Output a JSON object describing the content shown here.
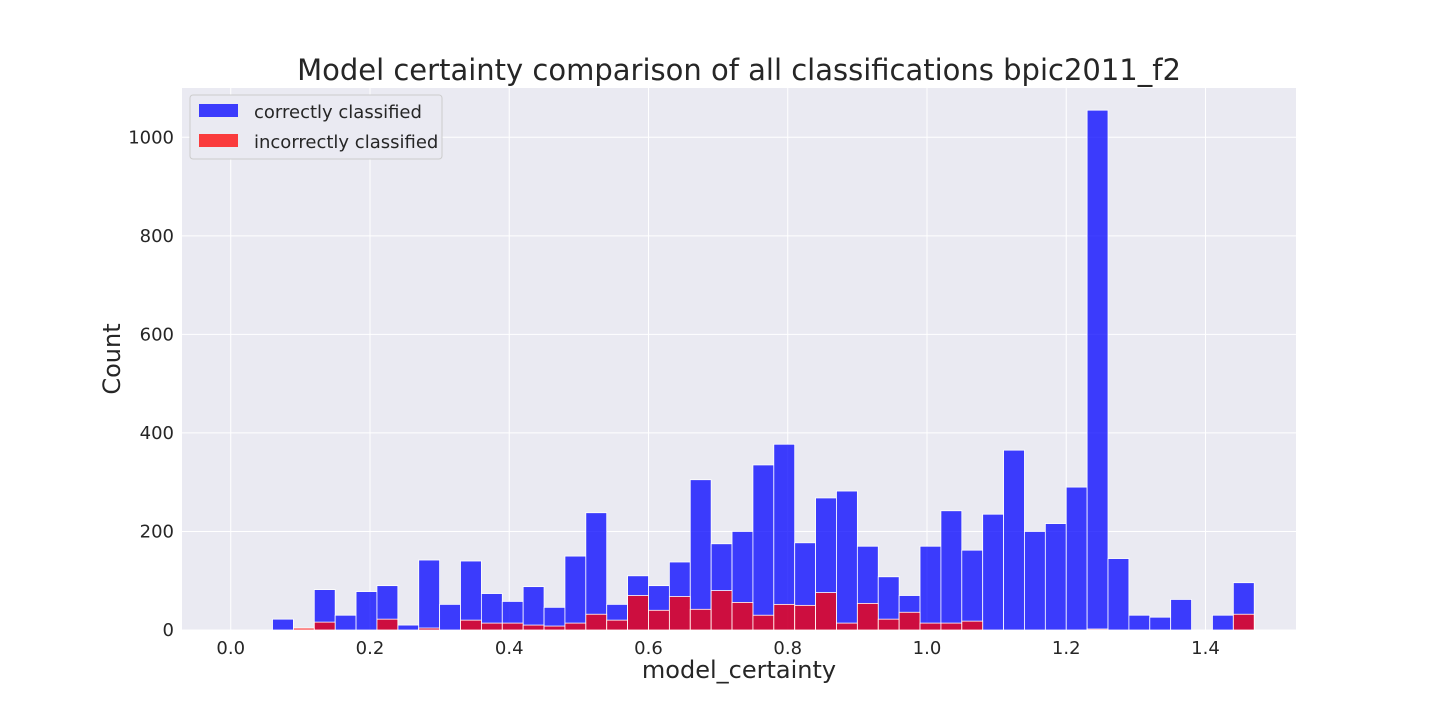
{
  "chart_data": {
    "type": "bar",
    "title": "Model certainty comparison of all classifications bpic2011_f2",
    "xlabel": "model_certainty",
    "ylabel": "Count",
    "xlim": [
      -0.07,
      1.53
    ],
    "ylim": [
      0,
      1100
    ],
    "xticks": [
      0.0,
      0.2,
      0.4,
      0.6,
      0.8,
      1.0,
      1.2,
      1.4
    ],
    "xtick_labels": [
      "0.0",
      "0.2",
      "0.4",
      "0.6",
      "0.8",
      "1.0",
      "1.2",
      "1.4"
    ],
    "yticks": [
      0,
      200,
      400,
      600,
      800,
      1000
    ],
    "ytick_labels": [
      "0",
      "200",
      "400",
      "600",
      "800",
      "1000"
    ],
    "grid": true,
    "legend_position": "top-left",
    "bin_start": 0.0,
    "bin_width": 0.03,
    "series": [
      {
        "name": "correctly classified",
        "color": "#0000ff",
        "values": [
          0,
          0,
          22,
          0,
          82,
          30,
          78,
          90,
          10,
          142,
          52,
          140,
          74,
          58,
          88,
          46,
          150,
          238,
          52,
          110,
          90,
          138,
          305,
          175,
          200,
          335,
          377,
          177,
          268,
          282,
          170,
          108,
          70,
          170,
          242,
          162,
          235,
          365,
          200,
          216,
          290,
          1055,
          145,
          30,
          26,
          62,
          0,
          30,
          96
        ]
      },
      {
        "name": "incorrectly classified",
        "color": "#ff0000",
        "values": [
          0,
          0,
          0,
          4,
          16,
          0,
          0,
          22,
          0,
          4,
          0,
          20,
          14,
          14,
          10,
          8,
          14,
          32,
          20,
          70,
          40,
          68,
          42,
          80,
          56,
          30,
          52,
          50,
          76,
          14,
          54,
          22,
          36,
          14,
          14,
          18,
          0,
          0,
          0,
          0,
          0,
          2,
          0,
          0,
          0,
          0,
          0,
          0,
          32
        ]
      }
    ]
  }
}
